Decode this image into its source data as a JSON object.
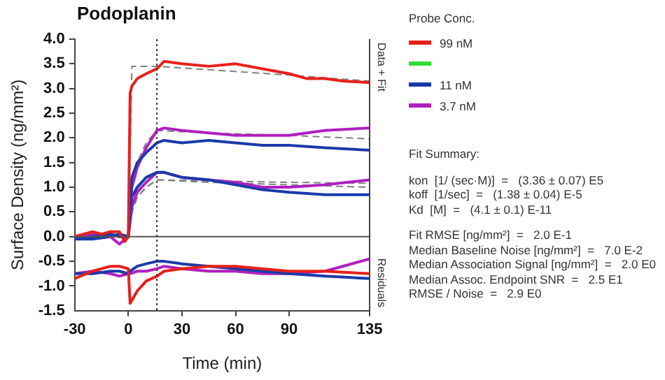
{
  "chart_data": {
    "type": "line",
    "title": "Podoplanin",
    "xlabel": "Time (min)",
    "ylabel": "Surface Density (ng/mm²)",
    "legend_title": "Probe Conc.",
    "legend": "right",
    "marker": "none",
    "line_style": "solid",
    "grid": false,
    "xlim": [
      -30,
      135
    ],
    "xticks": [
      -30,
      0,
      30,
      60,
      90,
      135
    ],
    "ylim": [
      -1.5,
      4.0
    ],
    "yticks": [
      {
        "value": -1.5,
        "label": "-1.5"
      },
      {
        "value": -1,
        "label": "-1.0"
      },
      {
        "value": -0.5,
        "label": "-0.5"
      },
      {
        "value": 0,
        "label": "0.0"
      },
      {
        "value": 0.5,
        "label": "0.5"
      },
      {
        "value": 1,
        "label": "1.0"
      },
      {
        "value": 1.5,
        "label": "1.5"
      },
      {
        "value": 2,
        "label": "2.0"
      },
      {
        "value": 2.5,
        "label": "2.5"
      },
      {
        "value": 3,
        "label": "3.0"
      },
      {
        "value": 3.5,
        "label": "3.5"
      },
      {
        "value": 4,
        "label": "4.0"
      }
    ],
    "ref_lines": [
      {
        "axis": "y",
        "value": 0,
        "color": "#555555",
        "line_style": "solid"
      },
      {
        "axis": "x",
        "value": 16,
        "color": "#333333",
        "line_style": "dotted"
      }
    ],
    "series": [
      {
        "name": "99 nM",
        "color": "#e8201a",
        "x": [
          -30,
          -25,
          -20,
          -15,
          -10,
          -5,
          -2,
          0,
          1,
          2,
          5,
          10,
          16,
          20,
          30,
          45,
          60,
          75,
          90,
          100,
          110,
          120,
          135
        ],
        "values": [
          0.0,
          0.05,
          0.1,
          0.05,
          0.1,
          0.1,
          -0.1,
          0.0,
          2.9,
          3.05,
          3.2,
          3.3,
          3.4,
          3.55,
          3.5,
          3.45,
          3.5,
          3.4,
          3.3,
          3.2,
          3.2,
          3.15,
          3.12
        ]
      },
      {
        "color": "#33dd33"
      },
      {
        "name": "11 nM",
        "color": "#1a3aaa",
        "x": [
          -30,
          -20,
          -10,
          -5,
          0,
          2,
          5,
          10,
          16,
          20,
          30,
          45,
          60,
          75,
          90,
          110,
          135
        ],
        "values": [
          -0.05,
          0.0,
          0.05,
          0.0,
          0.0,
          1.2,
          1.5,
          1.7,
          1.9,
          1.95,
          1.9,
          1.95,
          1.9,
          1.85,
          1.85,
          1.8,
          1.75
        ]
      },
      {
        "name": "3.7 nM",
        "color": "#b020c0",
        "x": [
          -30,
          -20,
          -10,
          -5,
          0,
          2,
          5,
          10,
          16,
          20,
          30,
          45,
          60,
          75,
          90,
          110,
          135
        ],
        "values": [
          0.0,
          0.05,
          0.0,
          -0.15,
          0.0,
          1.0,
          1.4,
          1.8,
          2.15,
          2.2,
          2.15,
          2.1,
          2.05,
          2.05,
          2.05,
          2.15,
          2.2
        ]
      },
      {
        "color": "#1a3aaa",
        "x": [
          -30,
          -20,
          -10,
          -5,
          0,
          2,
          5,
          10,
          16,
          20,
          30,
          45,
          60,
          75,
          90,
          110,
          135
        ],
        "values": [
          -0.05,
          -0.05,
          0.0,
          0.05,
          0.0,
          0.8,
          1.0,
          1.2,
          1.3,
          1.3,
          1.2,
          1.15,
          1.05,
          0.95,
          0.9,
          0.85,
          0.85
        ]
      },
      {
        "color": "#b020c0",
        "x": [
          -30,
          -20,
          -10,
          -5,
          0,
          2,
          5,
          10,
          16,
          20,
          30,
          45,
          60,
          75,
          90,
          110,
          135
        ],
        "values": [
          0.0,
          0.0,
          0.05,
          0.0,
          0.0,
          0.6,
          0.9,
          1.1,
          1.3,
          1.3,
          1.2,
          1.15,
          1.1,
          1.0,
          1.0,
          1.05,
          1.15
        ]
      },
      {
        "color": "#808080",
        "line_style": "dashed",
        "x": [
          0,
          2,
          5,
          10,
          16,
          45,
          90,
          135
        ],
        "values": [
          0,
          3.45,
          3.45,
          3.45,
          3.45,
          3.38,
          3.27,
          3.15
        ]
      },
      {
        "color": "#808080",
        "line_style": "dashed",
        "x": [
          0,
          2,
          5,
          10,
          16,
          45,
          90,
          135
        ],
        "values": [
          0,
          1.0,
          1.5,
          1.9,
          2.15,
          2.1,
          2.05,
          1.98
        ]
      },
      {
        "color": "#808080",
        "line_style": "dashed",
        "x": [
          0,
          2,
          5,
          10,
          16,
          45,
          90,
          135
        ],
        "values": [
          0,
          0.5,
          0.8,
          1.0,
          1.15,
          1.13,
          1.1,
          1.08
        ]
      },
      {
        "color": "#808080",
        "line_style": "dashed",
        "x": [
          0,
          2,
          5,
          10,
          16,
          45,
          90,
          135
        ],
        "values": [
          0,
          0.5,
          0.8,
          1.0,
          1.15,
          1.1,
          1.05,
          1.0
        ]
      },
      {
        "color": "#e8201a",
        "x": [
          -30,
          -20,
          -10,
          -5,
          0,
          1,
          5,
          10,
          16,
          20,
          30,
          45,
          60,
          75,
          90,
          110,
          135
        ],
        "values": [
          -0.85,
          -0.7,
          -0.6,
          -0.6,
          -0.65,
          -1.35,
          -1.1,
          -0.9,
          -0.8,
          -0.7,
          -0.65,
          -0.6,
          -0.6,
          -0.65,
          -0.7,
          -0.7,
          -0.75
        ]
      },
      {
        "color": "#1a3aaa",
        "x": [
          -30,
          -20,
          -10,
          -5,
          0,
          1,
          5,
          10,
          16,
          20,
          30,
          45,
          60,
          75,
          90,
          110,
          135
        ],
        "values": [
          -0.75,
          -0.75,
          -0.7,
          -0.7,
          -0.75,
          -0.7,
          -0.6,
          -0.55,
          -0.5,
          -0.5,
          -0.55,
          -0.6,
          -0.65,
          -0.7,
          -0.75,
          -0.8,
          -0.85
        ]
      },
      {
        "color": "#b020c0",
        "x": [
          -30,
          -20,
          -10,
          -5,
          0,
          1,
          5,
          10,
          16,
          20,
          30,
          45,
          60,
          75,
          90,
          110,
          135
        ],
        "values": [
          -0.75,
          -0.7,
          -0.75,
          -0.8,
          -0.75,
          -0.75,
          -0.7,
          -0.7,
          -0.65,
          -0.6,
          -0.65,
          -0.7,
          -0.7,
          -0.75,
          -0.75,
          -0.7,
          -0.45
        ]
      }
    ],
    "annotations": [
      "Data + Fit",
      "Residuals",
      "Fit Summary:",
      "kon  [1/ (sec·M)]  =   (3.36 ± 0.07) E5",
      "koff  [1/sec]  =   (1.38 ± 0.04) E-5",
      "Kd  [M]  =   (4.1 ± 0.1) E-11",
      "Fit RMSE [ng/mm²]  =   2.0 E-1",
      "Median Baseline Noise [ng/mm²]  =   7.0 E-2",
      "Median Association Signal [ng/mm²]  =   2.0 E0",
      "Median Assoc. Endpoint SNR  =   2.5 E1",
      "RMSE / Noise  =   2.9 E0"
    ]
  }
}
